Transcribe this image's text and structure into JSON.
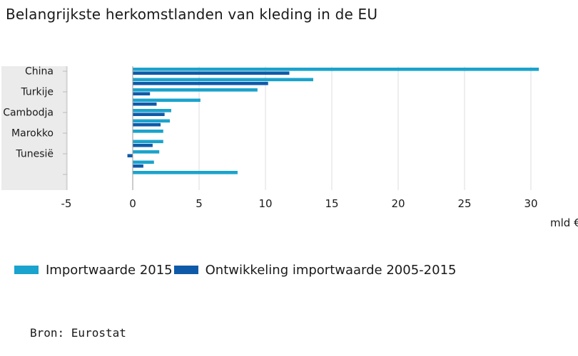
{
  "title": "Belangrijkste herkomstlanden van kleding in de EU",
  "source": "Bron: Eurostat",
  "colors": {
    "import_2015": "#1aa3cc",
    "development": "#0f5aa8",
    "band": "#ebebeb",
    "grid": "#dcdcdc",
    "axis": "#999999"
  },
  "chart_data": {
    "type": "bar",
    "orientation": "horizontal",
    "title": "Belangrijkste herkomstlanden van kleding in de EU",
    "xlabel": "mld €",
    "xlim": [
      -5,
      31
    ],
    "xticks": [
      -5,
      0,
      5,
      10,
      15,
      20,
      25,
      30
    ],
    "category_labels": [
      "China",
      "",
      "Turkije",
      "",
      "Cambodja",
      "",
      "Marokko",
      "",
      "Tunesië",
      "",
      ""
    ],
    "series": [
      {
        "name": "Importwaarde 2015",
        "color": "#1aa3cc",
        "values": [
          30.6,
          13.6,
          9.4,
          5.1,
          2.9,
          2.8,
          2.3,
          2.3,
          2.0,
          1.6,
          7.9
        ]
      },
      {
        "name": "Ontwikkeling importwaarde 2005-2015",
        "color": "#0f5aa8",
        "values": [
          11.8,
          10.2,
          1.3,
          1.8,
          2.4,
          2.1,
          null,
          1.5,
          -0.4,
          0.8,
          null
        ]
      }
    ],
    "legend_position": "bottom-left",
    "grid": true
  }
}
